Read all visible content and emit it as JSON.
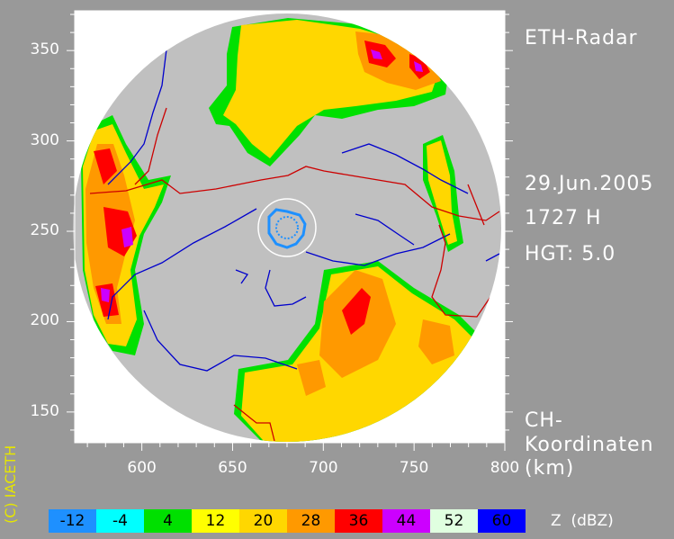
{
  "header": {
    "title": "ETH-Radar",
    "date": "29.Jun.2005",
    "time": "1727 H",
    "height": "HGT: 5.0"
  },
  "coords_label": [
    "CH-",
    "Koordinaten",
    "(km)"
  ],
  "copyright": "(C) IACETH",
  "axes": {
    "x_ticks": [
      600,
      650,
      700,
      750,
      800
    ],
    "y_ticks": [
      150,
      200,
      250,
      300,
      350
    ],
    "x_range": [
      563,
      800
    ],
    "y_range": [
      133,
      372
    ]
  },
  "radar": {
    "center_km": [
      680,
      252
    ],
    "radius_km": 115,
    "inner_ring_km": 16,
    "background_color": "#c0c0c0"
  },
  "legend": {
    "unit": "Z  (dBZ)",
    "bins": [
      {
        "label": "-12",
        "color": "#1e90ff"
      },
      {
        "label": "-4",
        "color": "#00ffff"
      },
      {
        "label": "4",
        "color": "#00e000"
      },
      {
        "label": "12",
        "color": "#ffff00"
      },
      {
        "label": "20",
        "color": "#ffd700"
      },
      {
        "label": "28",
        "color": "#ff9900"
      },
      {
        "label": "36",
        "color": "#ff0000"
      },
      {
        "label": "44",
        "color": "#cc00ff"
      },
      {
        "label": "52",
        "color": "#e0ffe0"
      },
      {
        "label": "60",
        "color": "#0000ff"
      }
    ]
  },
  "colors": {
    "frame": "#ffffff",
    "figure_background": "#999999",
    "rivers": "#0000cc",
    "borders": "#cc0000",
    "copyright": "#e6e600"
  }
}
